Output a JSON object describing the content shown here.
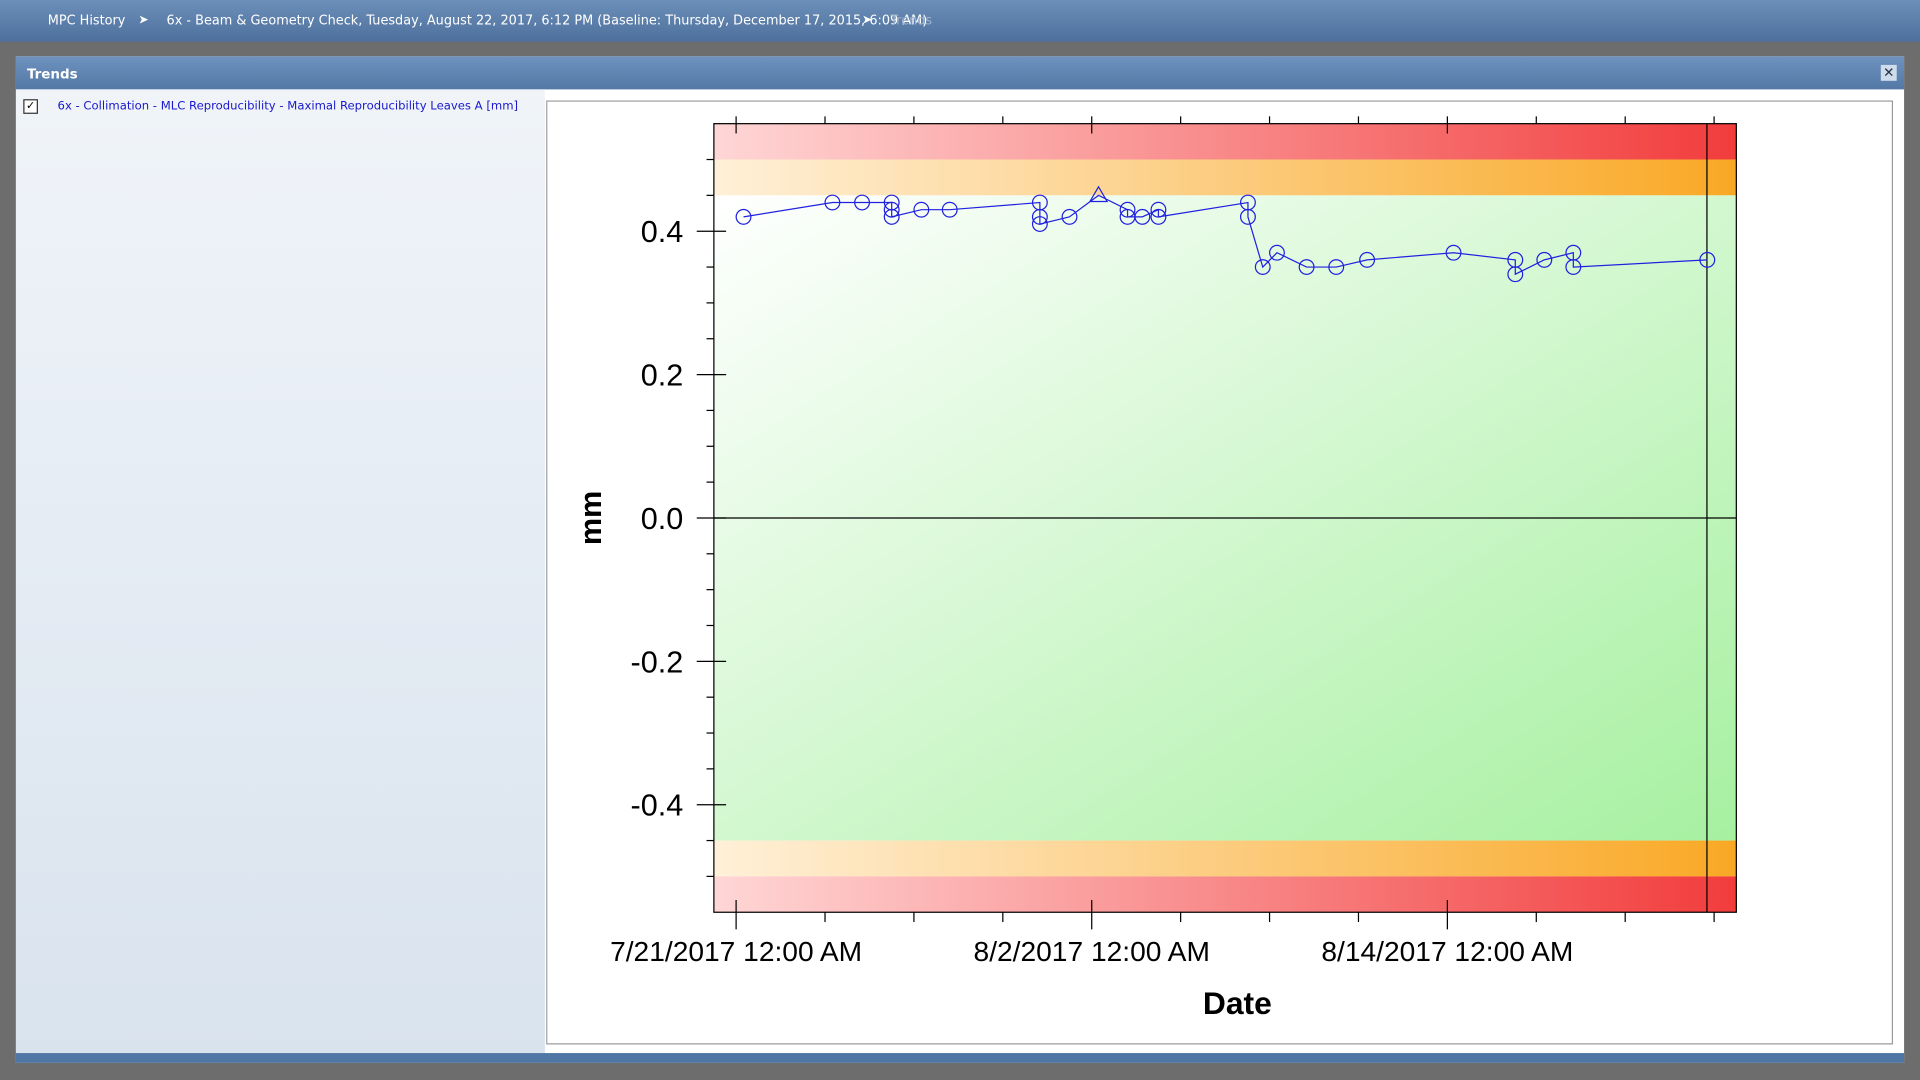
{
  "breadcrumb": [
    "MPC History",
    "6x - Beam & Geometry Check, Tuesday, August 22, 2017, 6:12 PM (Baseline: Thursday, December 17, 2015, 6:09 AM)",
    "Trends"
  ],
  "panel": {
    "title": "Trends",
    "items": [
      {
        "label": "6x - Collimation - MLC Reproducibility - Maximal Reproducibility Leaves A [mm]",
        "checked": true
      }
    ]
  },
  "chart_data": {
    "type": "line",
    "xlabel": "Date",
    "ylabel": "mm",
    "xlim": [
      "2017-07-20T06:00",
      "2017-08-23T18:00"
    ],
    "ylim": [
      -0.55,
      0.55
    ],
    "xticks": [
      {
        "value": "2017-07-21T00:00",
        "label": "7/21/2017 12:00 AM"
      },
      {
        "value": "2017-08-02T00:00",
        "label": "8/2/2017 12:00 AM"
      },
      {
        "value": "2017-08-14T00:00",
        "label": "8/14/2017 12:00 AM"
      }
    ],
    "xminorticks": [
      "2017-07-24T00:00",
      "2017-07-27T00:00",
      "2017-07-30T00:00",
      "2017-08-05T00:00",
      "2017-08-08T00:00",
      "2017-08-11T00:00",
      "2017-08-17T00:00",
      "2017-08-20T00:00",
      "2017-08-23T00:00"
    ],
    "yticks": [
      -0.4,
      -0.2,
      {
        "value": 0,
        "label": "0.0"
      },
      0.2,
      0.4
    ],
    "yminorticks": [
      -0.5,
      -0.45,
      -0.35,
      -0.3,
      -0.25,
      -0.15,
      -0.1,
      -0.05,
      0.05,
      0.1,
      0.15,
      0.25,
      0.3,
      0.35,
      0.45,
      0.5
    ],
    "bands": [
      {
        "from": 0.5,
        "to": 0.55,
        "color": "red"
      },
      {
        "from": 0.45,
        "to": 0.5,
        "color": "orange"
      },
      {
        "from": -0.45,
        "to": 0.45,
        "color": "green"
      },
      {
        "from": -0.5,
        "to": -0.45,
        "color": "orange"
      },
      {
        "from": -0.55,
        "to": -0.5,
        "color": "red"
      }
    ],
    "zero_line": 0,
    "current_date": "2017-08-22T18:12",
    "series": [
      {
        "color": "#2020e0",
        "x": [
          "2017-07-21T06:00",
          "2017-07-24T06:00",
          "2017-07-25T06:00",
          "2017-07-26T06:00",
          "2017-07-26T06:00",
          "2017-07-26T06:00",
          "2017-07-27T06:00",
          "2017-07-28T05:00",
          "2017-07-31T06:00",
          "2017-07-31T06:00",
          "2017-07-31T06:00",
          "2017-08-01T06:00",
          "2017-08-02T05:30",
          "2017-08-03T05:00",
          "2017-08-03T05:00",
          "2017-08-03T17:00",
          "2017-08-04T06:00",
          "2017-08-04T06:00",
          "2017-08-07T06:30",
          "2017-08-07T06:30",
          "2017-08-07T18:30",
          "2017-08-08T06:00",
          "2017-08-09T06:00",
          "2017-08-10T06:00",
          "2017-08-11T07:00",
          "2017-08-14T05:00",
          "2017-08-16T07:00",
          "2017-08-16T07:00",
          "2017-08-17T06:30",
          "2017-08-18T06:00",
          "2017-08-18T06:00",
          "2017-08-22T18:30"
        ],
        "values": [
          0.42,
          0.44,
          0.44,
          0.44,
          0.43,
          0.42,
          0.43,
          0.43,
          0.44,
          0.42,
          0.41,
          0.42,
          0.45,
          0.43,
          0.42,
          0.42,
          0.43,
          0.42,
          0.44,
          0.42,
          0.35,
          0.37,
          0.35,
          0.35,
          0.36,
          0.37,
          0.36,
          0.34,
          0.36,
          0.37,
          0.35,
          0.36
        ],
        "markers": [
          "circle",
          "circle",
          "circle",
          "circle",
          "circle",
          "circle",
          "circle",
          "circle",
          "circle",
          "circle",
          "circle",
          "circle",
          "triangle",
          "circle",
          "circle",
          "circle",
          "circle",
          "circle",
          "circle",
          "circle",
          "circle",
          "circle",
          "circle",
          "circle",
          "circle",
          "circle",
          "circle",
          "circle",
          "circle",
          "circle",
          "circle",
          "circle"
        ]
      }
    ]
  }
}
